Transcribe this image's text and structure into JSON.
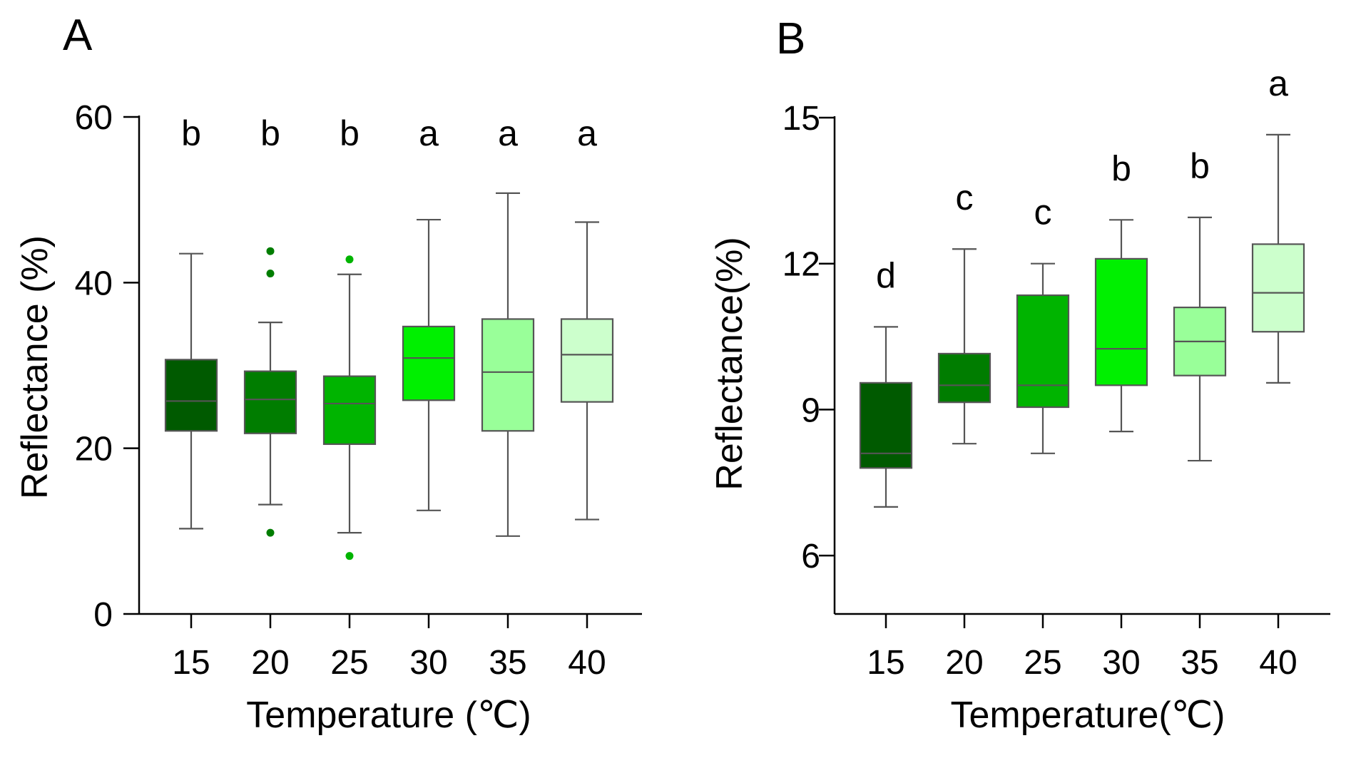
{
  "chart_data": [
    {
      "type": "box",
      "panel_label": "A",
      "xlabel": "Temperature (℃)",
      "ylabel": "Reflectance (%)",
      "ylim": [
        0,
        60
      ],
      "yticks": [
        "0",
        "20",
        "40",
        "60"
      ],
      "categories": [
        "15",
        "20",
        "25",
        "30",
        "35",
        "40"
      ],
      "colors": [
        "#005a00",
        "#007d00",
        "#00b400",
        "#00f000",
        "#99ff99",
        "#ccffcc"
      ],
      "boxes": [
        {
          "min": 10.3,
          "q1": 22.1,
          "median": 25.7,
          "q3": 30.7,
          "max": 43.5,
          "outliers": []
        },
        {
          "min": 13.2,
          "q1": 21.8,
          "median": 25.9,
          "q3": 29.3,
          "max": 35.2,
          "outliers": [
            43.8,
            41.1,
            9.8
          ]
        },
        {
          "min": 9.8,
          "q1": 20.5,
          "median": 25.4,
          "q3": 28.7,
          "max": 41.0,
          "outliers": [
            42.8,
            7.0
          ]
        },
        {
          "min": 12.5,
          "q1": 25.8,
          "median": 30.9,
          "q3": 34.7,
          "max": 47.6,
          "outliers": []
        },
        {
          "min": 9.4,
          "q1": 22.1,
          "median": 29.2,
          "q3": 35.6,
          "max": 50.8,
          "outliers": []
        },
        {
          "min": 11.4,
          "q1": 25.6,
          "median": 31.3,
          "q3": 35.6,
          "max": 47.3,
          "outliers": []
        }
      ],
      "significance_letters": [
        "b",
        "b",
        "b",
        "a",
        "a",
        "a"
      ]
    },
    {
      "type": "box",
      "panel_label": "B",
      "xlabel": "Temperature(℃)",
      "ylabel": "Reflectance(%)",
      "ylim": [
        4.8,
        15
      ],
      "yticks": [
        "6",
        "9",
        "12",
        "15"
      ],
      "ytick_values": [
        6,
        9,
        12,
        15
      ],
      "categories": [
        "15",
        "20",
        "25",
        "30",
        "35",
        "40"
      ],
      "colors": [
        "#005a00",
        "#007d00",
        "#00b400",
        "#00f000",
        "#99ff99",
        "#ccffcc"
      ],
      "boxes": [
        {
          "min": 7.0,
          "q1": 7.8,
          "median": 8.1,
          "q3": 9.55,
          "max": 10.7,
          "outliers": []
        },
        {
          "min": 8.3,
          "q1": 9.15,
          "median": 9.5,
          "q3": 10.15,
          "max": 12.3,
          "outliers": []
        },
        {
          "min": 8.1,
          "q1": 9.05,
          "median": 9.5,
          "q3": 11.35,
          "max": 12.0,
          "outliers": []
        },
        {
          "min": 8.55,
          "q1": 9.5,
          "median": 10.25,
          "q3": 12.1,
          "max": 12.9,
          "outliers": []
        },
        {
          "min": 7.95,
          "q1": 9.7,
          "median": 10.4,
          "q3": 11.1,
          "max": 12.95,
          "outliers": []
        },
        {
          "min": 9.55,
          "q1": 10.6,
          "median": 11.4,
          "q3": 12.4,
          "max": 14.65,
          "outliers": []
        }
      ],
      "significance_letters": [
        "d",
        "c",
        "c",
        "b",
        "b",
        "a"
      ]
    }
  ]
}
